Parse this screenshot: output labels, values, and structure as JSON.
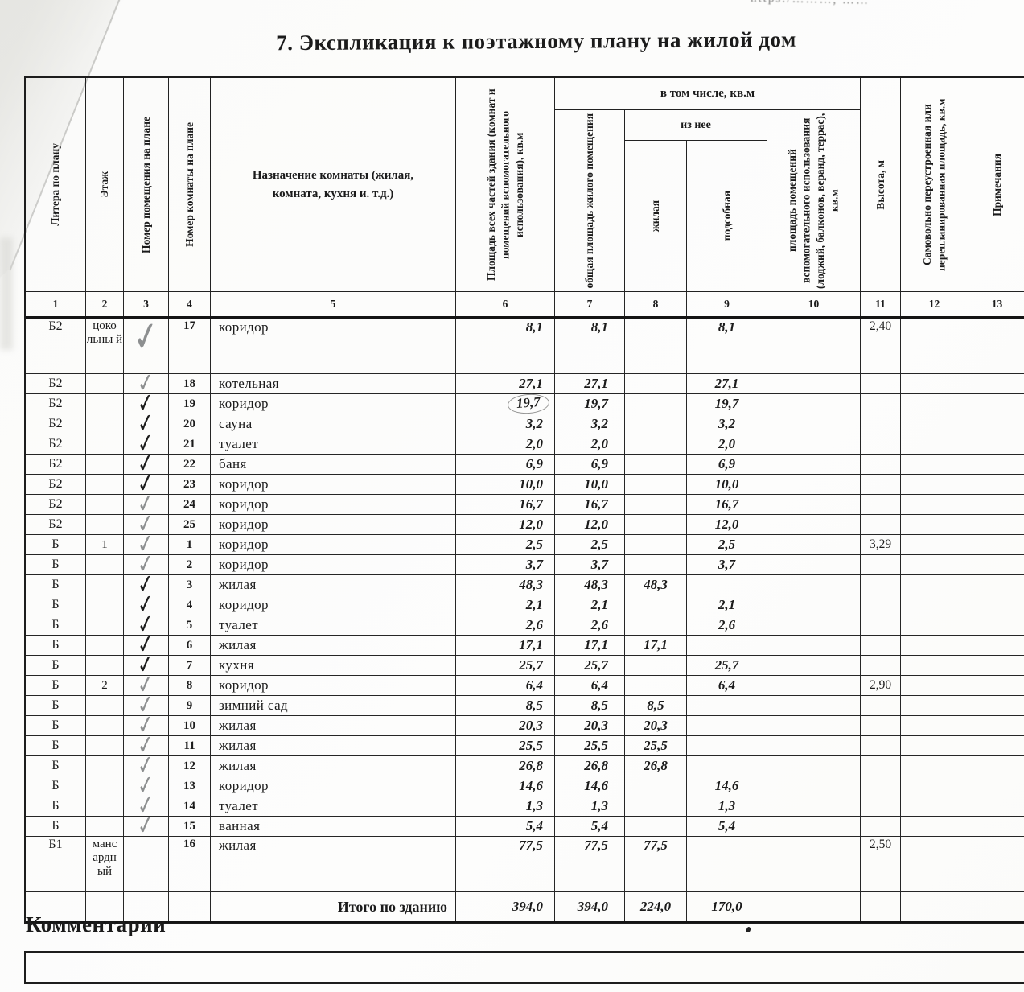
{
  "page": {
    "title": "7. Экспликация к поэтажному плану на жилой дом",
    "top_right_fragment": "https:/………, ……",
    "comments": {
      "label": "Комментарии",
      "value": ""
    }
  },
  "table": {
    "span_headers": {
      "in_total": "в том числе, кв.м",
      "of_which": "из нее"
    },
    "columns": [
      {
        "num": "1",
        "label": "Литера по плану"
      },
      {
        "num": "2",
        "label": "Этаж"
      },
      {
        "num": "3",
        "label": "Номер помещения  на плане"
      },
      {
        "num": "4",
        "label": "Номер комнаты на плане"
      },
      {
        "num": "5",
        "label": "Назначение комнаты (жилая, комната, кухня и. т.д.)"
      },
      {
        "num": "6",
        "label": "Площадь всех частей здания (комнат и помещений вспомогательного использования), кв.м"
      },
      {
        "num": "7",
        "label": "общая площадь жилого помещения"
      },
      {
        "num": "8",
        "label": "жилая"
      },
      {
        "num": "9",
        "label": "подсобная"
      },
      {
        "num": "10",
        "label": "площадь помещений вспомогательного использования (лоджий, балконов, веранд, террас), кв.м"
      },
      {
        "num": "11",
        "label": "Высота, м"
      },
      {
        "num": "12",
        "label": "Самовольно переустроенная или перепланированная площадь, кв.м"
      },
      {
        "num": "13",
        "label": "Примечания"
      }
    ],
    "marks": {
      "check_glyph": "✓",
      "colors": {
        "pencil_gray": "#8d8f90",
        "ink_black": "#1c1c1c"
      }
    },
    "rows": [
      {
        "litera": "Б2",
        "floor": "цоко льны й",
        "check": "gray-big",
        "num": "17",
        "purpose": "коридор",
        "total": "8,1",
        "common": "8,1",
        "living": "",
        "aux": "8,1",
        "height": "2,40",
        "tall": true
      },
      {
        "litera": "Б2",
        "floor": "",
        "check": "gray",
        "num": "18",
        "purpose": "котельная",
        "total": "27,1",
        "common": "27,1",
        "living": "",
        "aux": "27,1",
        "height": ""
      },
      {
        "litera": "Б2",
        "floor": "",
        "check": "black",
        "num": "19",
        "purpose": "коридор",
        "total": "19,7",
        "common": "19,7",
        "living": "",
        "aux": "19,7",
        "height": "",
        "circled": true
      },
      {
        "litera": "Б2",
        "floor": "",
        "check": "black",
        "num": "20",
        "purpose": "сауна",
        "total": "3,2",
        "common": "3,2",
        "living": "",
        "aux": "3,2",
        "height": ""
      },
      {
        "litera": "Б2",
        "floor": "",
        "check": "black",
        "num": "21",
        "purpose": "туалет",
        "total": "2,0",
        "common": "2,0",
        "living": "",
        "aux": "2,0",
        "height": ""
      },
      {
        "litera": "Б2",
        "floor": "",
        "check": "black",
        "num": "22",
        "purpose": "баня",
        "total": "6,9",
        "common": "6,9",
        "living": "",
        "aux": "6,9",
        "height": ""
      },
      {
        "litera": "Б2",
        "floor": "",
        "check": "black",
        "num": "23",
        "purpose": "коридор",
        "total": "10,0",
        "common": "10,0",
        "living": "",
        "aux": "10,0",
        "height": ""
      },
      {
        "litera": "Б2",
        "floor": "",
        "check": "gray",
        "num": "24",
        "purpose": "коридор",
        "total": "16,7",
        "common": "16,7",
        "living": "",
        "aux": "16,7",
        "height": ""
      },
      {
        "litera": "Б2",
        "floor": "",
        "check": "gray",
        "num": "25",
        "purpose": "коридор",
        "total": "12,0",
        "common": "12,0",
        "living": "",
        "aux": "12,0",
        "height": ""
      },
      {
        "litera": "Б",
        "floor": "1",
        "check": "gray",
        "num": "1",
        "purpose": "коридор",
        "total": "2,5",
        "common": "2,5",
        "living": "",
        "aux": "2,5",
        "height": "3,29"
      },
      {
        "litera": "Б",
        "floor": "",
        "check": "gray",
        "num": "2",
        "purpose": "коридор",
        "total": "3,7",
        "common": "3,7",
        "living": "",
        "aux": "3,7",
        "height": ""
      },
      {
        "litera": "Б",
        "floor": "",
        "check": "black",
        "num": "3",
        "purpose": "жилая",
        "total": "48,3",
        "common": "48,3",
        "living": "48,3",
        "aux": "",
        "height": ""
      },
      {
        "litera": "Б",
        "floor": "",
        "check": "black",
        "num": "4",
        "purpose": "коридор",
        "total": "2,1",
        "common": "2,1",
        "living": "",
        "aux": "2,1",
        "height": ""
      },
      {
        "litera": "Б",
        "floor": "",
        "check": "black",
        "num": "5",
        "purpose": "туалет",
        "total": "2,6",
        "common": "2,6",
        "living": "",
        "aux": "2,6",
        "height": ""
      },
      {
        "litera": "Б",
        "floor": "",
        "check": "black",
        "num": "6",
        "purpose": "жилая",
        "total": "17,1",
        "common": "17,1",
        "living": "17,1",
        "aux": "",
        "height": ""
      },
      {
        "litera": "Б",
        "floor": "",
        "check": "black",
        "num": "7",
        "purpose": "кухня",
        "total": "25,7",
        "common": "25,7",
        "living": "",
        "aux": "25,7",
        "height": ""
      },
      {
        "litera": "Б",
        "floor": "2",
        "check": "gray",
        "num": "8",
        "purpose": "коридор",
        "total": "6,4",
        "common": "6,4",
        "living": "",
        "aux": "6,4",
        "height": "2,90"
      },
      {
        "litera": "Б",
        "floor": "",
        "check": "gray",
        "num": "9",
        "purpose": "зимний сад",
        "total": "8,5",
        "common": "8,5",
        "living": "8,5",
        "aux": "",
        "height": ""
      },
      {
        "litera": "Б",
        "floor": "",
        "check": "gray",
        "num": "10",
        "purpose": "жилая",
        "total": "20,3",
        "common": "20,3",
        "living": "20,3",
        "aux": "",
        "height": ""
      },
      {
        "litera": "Б",
        "floor": "",
        "check": "gray",
        "num": "11",
        "purpose": "жилая",
        "total": "25,5",
        "common": "25,5",
        "living": "25,5",
        "aux": "",
        "height": ""
      },
      {
        "litera": "Б",
        "floor": "",
        "check": "gray",
        "num": "12",
        "purpose": "жилая",
        "total": "26,8",
        "common": "26,8",
        "living": "26,8",
        "aux": "",
        "height": ""
      },
      {
        "litera": "Б",
        "floor": "",
        "check": "gray",
        "num": "13",
        "purpose": "коридор",
        "total": "14,6",
        "common": "14,6",
        "living": "",
        "aux": "14,6",
        "height": ""
      },
      {
        "litera": "Б",
        "floor": "",
        "check": "gray",
        "num": "14",
        "purpose": "туалет",
        "total": "1,3",
        "common": "1,3",
        "living": "",
        "aux": "1,3",
        "height": ""
      },
      {
        "litera": "Б",
        "floor": "",
        "check": "gray",
        "num": "15",
        "purpose": "ванная",
        "total": "5,4",
        "common": "5,4",
        "living": "",
        "aux": "5,4",
        "height": ""
      },
      {
        "litera": "Б1",
        "floor": "манс ардн ый",
        "check": "",
        "num": "16",
        "purpose": "жилая",
        "total": "77,5",
        "common": "77,5",
        "living": "77,5",
        "aux": "",
        "height": "2,50",
        "tall": true
      }
    ],
    "total_row": {
      "label": "Итого по зданию",
      "total": "394,0",
      "common": "394,0",
      "living": "224,0",
      "aux": "170,0"
    }
  }
}
